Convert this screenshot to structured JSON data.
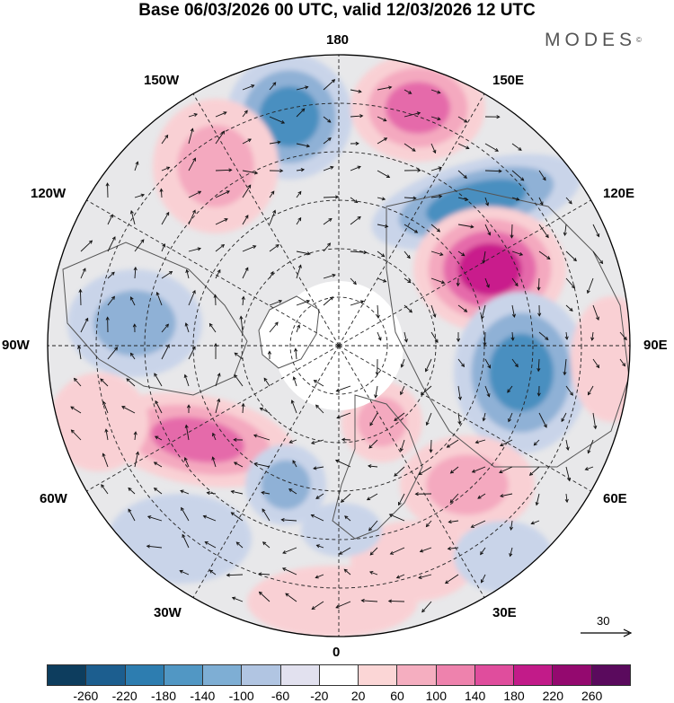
{
  "title": "Base 06/03/2026 00 UTC, valid 12/03/2026 12 UTC",
  "brand": {
    "name": "MODES",
    "mark": "©"
  },
  "longitude_labels": {
    "top": "180",
    "bottom": "0",
    "left": "90W",
    "right": "90E",
    "upper_left": "150W",
    "upper_right": "150E",
    "left_upper": "120W",
    "right_upper": "120E",
    "left_lower": "60W",
    "right_lower": "60E",
    "lower_left": "30W",
    "lower_right": "30E"
  },
  "wind_reference": {
    "value": "30"
  },
  "colorbar": {
    "colors": [
      "#0d3d5e",
      "#1c5e8f",
      "#2d7db0",
      "#5197c4",
      "#7eaed4",
      "#b1c5e2",
      "#e2e1ef",
      "#ffffff",
      "#fbd6d6",
      "#f5aec0",
      "#ee82ad",
      "#e04d9d",
      "#c21b89",
      "#94096f",
      "#5a0a5d"
    ],
    "labels": [
      "-260",
      "-220",
      "-180",
      "-140",
      "-100",
      "-60",
      "-20",
      "20",
      "60",
      "100",
      "140",
      "180",
      "220",
      "260"
    ]
  },
  "anomaly_colors": {
    "blue_strong": "#4a8fc0",
    "blue_mid": "#8fb1d6",
    "blue_light": "#c9d4e9",
    "pink_light": "#f9d0d4",
    "pink_mid": "#f4a9bf",
    "pink_strong": "#e56aaa",
    "magenta": "#c91c8c",
    "neutral": "#e6e6e8"
  }
}
